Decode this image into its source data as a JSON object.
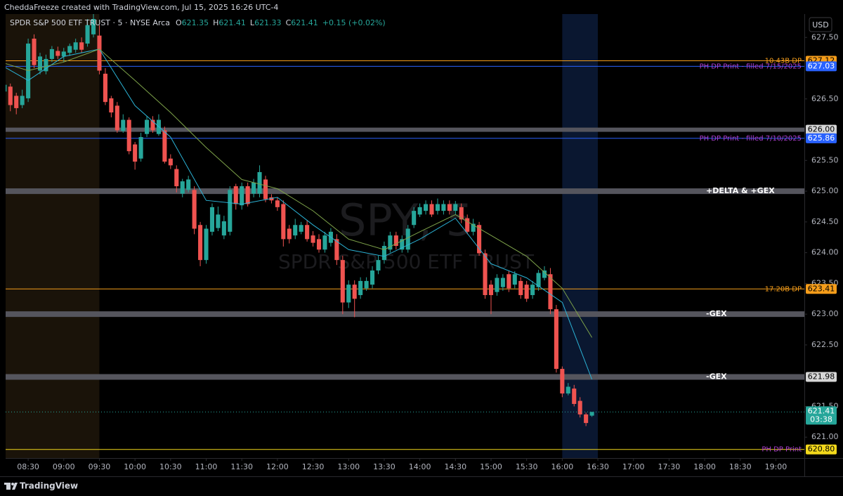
{
  "header": "CheddaFreeze created with TradingView.com, Jul 15, 2025 16:26 UTC-4",
  "footer": "TradingView",
  "chart_data": {
    "type": "candlestick",
    "title": "SPDR S&P 500 ETF TRUST · 5 · NYSE Arca",
    "watermark": [
      "SPY, 5",
      "SPDR S&P 500 ETF TRUST"
    ],
    "ohlc_prefixes": [
      "O",
      "H",
      "L",
      "C"
    ],
    "change": "+0.15 (+0.02%)",
    "currency": "USD",
    "countdown": "03:38",
    "up_color": "#26a69a",
    "down_color": "#ef5350",
    "x": [
      "08:10",
      "08:15",
      "08:20",
      "08:25",
      "08:30",
      "08:35",
      "08:40",
      "08:45",
      "08:50",
      "08:55",
      "09:00",
      "09:05",
      "09:10",
      "09:15",
      "09:20",
      "09:25",
      "09:30",
      "09:35",
      "09:40",
      "09:45",
      "09:50",
      "09:55",
      "10:00",
      "10:05",
      "10:10",
      "10:15",
      "10:20",
      "10:25",
      "10:30",
      "10:35",
      "10:40",
      "10:45",
      "10:50",
      "10:55",
      "11:00",
      "11:05",
      "11:10",
      "11:15",
      "11:20",
      "11:25",
      "11:30",
      "11:35",
      "11:40",
      "11:45",
      "11:50",
      "11:55",
      "12:00",
      "12:05",
      "12:10",
      "12:15",
      "12:20",
      "12:25",
      "12:30",
      "12:35",
      "12:40",
      "12:45",
      "12:50",
      "12:55",
      "13:00",
      "13:05",
      "13:10",
      "13:15",
      "13:20",
      "13:25",
      "13:30",
      "13:35",
      "13:40",
      "13:45",
      "13:50",
      "13:55",
      "14:00",
      "14:05",
      "14:10",
      "14:15",
      "14:20",
      "14:25",
      "14:30",
      "14:35",
      "14:40",
      "14:45",
      "14:50",
      "14:55",
      "15:00",
      "15:05",
      "15:10",
      "15:15",
      "15:20",
      "15:25",
      "15:30",
      "15:35",
      "15:40",
      "15:45",
      "15:50",
      "15:55",
      "16:00",
      "16:05",
      "16:10",
      "16:15",
      "16:20",
      "16:25"
    ],
    "ohlc": [
      [
        626.62,
        626.78,
        626.58,
        626.73
      ],
      [
        626.7,
        626.75,
        626.3,
        626.4
      ],
      [
        626.55,
        626.6,
        626.25,
        626.35
      ],
      [
        626.4,
        626.65,
        626.35,
        626.55
      ],
      [
        626.51,
        627.48,
        626.45,
        627.4
      ],
      [
        627.48,
        627.55,
        627.0,
        627.05
      ],
      [
        626.96,
        627.25,
        626.9,
        627.19
      ],
      [
        626.95,
        627.22,
        626.9,
        627.15
      ],
      [
        627.15,
        627.36,
        627.1,
        627.31
      ],
      [
        627.28,
        627.35,
        627.15,
        627.2
      ],
      [
        627.19,
        627.33,
        627.1,
        627.27
      ],
      [
        627.25,
        627.4,
        627.2,
        627.36
      ],
      [
        627.3,
        627.48,
        627.25,
        627.42
      ],
      [
        627.42,
        627.5,
        627.25,
        627.3
      ],
      [
        627.4,
        627.8,
        627.35,
        627.7
      ],
      [
        627.55,
        627.88,
        627.5,
        627.8
      ],
      [
        627.53,
        627.7,
        626.9,
        626.96
      ],
      [
        626.91,
        627.0,
        626.4,
        626.45
      ],
      [
        626.51,
        626.55,
        626.2,
        626.28
      ],
      [
        626.39,
        626.45,
        625.95,
        625.99
      ],
      [
        625.98,
        626.25,
        625.95,
        626.16
      ],
      [
        626.16,
        626.2,
        625.6,
        625.65
      ],
      [
        625.76,
        625.8,
        625.35,
        625.48
      ],
      [
        625.53,
        625.95,
        625.48,
        625.88
      ],
      [
        625.93,
        626.22,
        625.88,
        626.16
      ],
      [
        626.16,
        626.22,
        625.95,
        625.99
      ],
      [
        625.93,
        626.25,
        625.9,
        626.16
      ],
      [
        625.99,
        626.05,
        625.45,
        625.48
      ],
      [
        625.53,
        625.6,
        625.36,
        625.42
      ],
      [
        625.36,
        625.42,
        624.98,
        625.08
      ],
      [
        624.96,
        625.2,
        624.9,
        625.16
      ],
      [
        625.02,
        625.25,
        624.98,
        625.19
      ],
      [
        625.02,
        625.08,
        624.3,
        624.39
      ],
      [
        624.45,
        624.5,
        623.78,
        623.88
      ],
      [
        623.88,
        624.45,
        623.82,
        624.39
      ],
      [
        624.34,
        624.8,
        624.28,
        624.74
      ],
      [
        624.4,
        624.75,
        624.35,
        624.62
      ],
      [
        624.28,
        624.6,
        624.22,
        624.51
      ],
      [
        624.34,
        625.08,
        624.28,
        625.02
      ],
      [
        625.08,
        625.12,
        624.7,
        624.79
      ],
      [
        624.77,
        625.14,
        624.7,
        625.08
      ],
      [
        625.08,
        625.14,
        624.75,
        624.79
      ],
      [
        624.96,
        625.2,
        624.9,
        625.14
      ],
      [
        624.96,
        625.42,
        624.9,
        625.31
      ],
      [
        625.19,
        625.25,
        624.82,
        624.87
      ],
      [
        624.9,
        624.95,
        624.8,
        624.85
      ],
      [
        624.85,
        624.9,
        624.68,
        624.74
      ],
      [
        624.79,
        624.85,
        624.1,
        624.22
      ],
      [
        624.39,
        624.45,
        624.15,
        624.22
      ],
      [
        624.28,
        624.55,
        624.22,
        624.45
      ],
      [
        624.34,
        624.5,
        624.3,
        624.45
      ],
      [
        624.45,
        624.52,
        624.18,
        624.22
      ],
      [
        624.28,
        624.35,
        624.1,
        624.16
      ],
      [
        624.22,
        624.3,
        624.0,
        624.05
      ],
      [
        624.05,
        624.34,
        624.0,
        624.28
      ],
      [
        624.16,
        624.4,
        624.1,
        624.34
      ],
      [
        624.22,
        624.3,
        623.8,
        623.88
      ],
      [
        623.88,
        623.95,
        623.0,
        623.19
      ],
      [
        623.19,
        623.55,
        623.1,
        623.48
      ],
      [
        623.48,
        623.55,
        622.95,
        623.25
      ],
      [
        623.31,
        623.6,
        623.25,
        623.54
      ],
      [
        623.42,
        623.6,
        623.38,
        623.54
      ],
      [
        623.48,
        623.78,
        623.42,
        623.71
      ],
      [
        623.71,
        623.95,
        623.65,
        623.88
      ],
      [
        623.88,
        624.18,
        623.82,
        624.11
      ],
      [
        624.05,
        624.34,
        624.0,
        624.28
      ],
      [
        624.28,
        624.34,
        624.05,
        624.11
      ],
      [
        624.05,
        624.28,
        624.0,
        624.22
      ],
      [
        624.05,
        624.45,
        624.0,
        624.39
      ],
      [
        624.45,
        624.74,
        624.4,
        624.68
      ],
      [
        624.62,
        624.8,
        624.58,
        624.74
      ],
      [
        624.68,
        624.85,
        624.62,
        624.79
      ],
      [
        624.79,
        624.85,
        624.58,
        624.62
      ],
      [
        624.68,
        624.88,
        624.62,
        624.79
      ],
      [
        624.68,
        624.85,
        624.62,
        624.79
      ],
      [
        624.79,
        624.85,
        624.62,
        624.68
      ],
      [
        624.68,
        624.84,
        624.62,
        624.79
      ],
      [
        624.74,
        624.8,
        624.48,
        624.54
      ],
      [
        624.56,
        624.62,
        624.3,
        624.34
      ],
      [
        624.34,
        624.55,
        624.28,
        624.47
      ],
      [
        624.45,
        624.5,
        623.95,
        623.99
      ],
      [
        623.99,
        624.05,
        623.25,
        623.31
      ],
      [
        623.48,
        623.55,
        623.0,
        623.31
      ],
      [
        623.36,
        623.65,
        623.3,
        623.59
      ],
      [
        623.44,
        623.65,
        623.38,
        623.59
      ],
      [
        623.65,
        623.7,
        623.36,
        623.42
      ],
      [
        623.48,
        623.7,
        623.42,
        623.65
      ],
      [
        623.54,
        623.6,
        623.25,
        623.31
      ],
      [
        623.48,
        623.54,
        623.2,
        623.25
      ],
      [
        623.31,
        623.54,
        623.25,
        623.48
      ],
      [
        623.44,
        623.72,
        623.38,
        623.67
      ],
      [
        623.59,
        623.78,
        623.55,
        623.71
      ],
      [
        623.65,
        623.75,
        623.0,
        623.08
      ],
      [
        623.08,
        623.15,
        622.05,
        622.11
      ],
      [
        622.11,
        622.15,
        621.65,
        621.71
      ],
      [
        621.71,
        621.88,
        621.68,
        621.82
      ],
      [
        621.79,
        621.85,
        621.5,
        621.54
      ],
      [
        621.59,
        621.65,
        621.32,
        621.37
      ],
      [
        621.37,
        621.4,
        621.18,
        621.23
      ],
      [
        621.35,
        621.41,
        621.33,
        621.41
      ]
    ],
    "lines": [
      {
        "color": "#2bb3d6",
        "x": [
          "08:10",
          "08:30",
          "09:00",
          "09:30",
          "10:00",
          "10:30",
          "11:00",
          "11:30",
          "12:00",
          "12:30",
          "13:00",
          "13:30",
          "14:00",
          "14:30",
          "15:00",
          "15:30",
          "16:00",
          "16:25"
        ],
        "values": [
          627.02,
          626.8,
          627.19,
          627.31,
          626.39,
          625.88,
          624.85,
          624.79,
          624.9,
          624.45,
          624.05,
          623.94,
          624.22,
          624.56,
          623.82,
          623.59,
          623.19,
          621.94
        ]
      },
      {
        "color": "#7ea34a",
        "x": [
          "08:10",
          "08:30",
          "09:00",
          "09:30",
          "10:00",
          "10:30",
          "11:00",
          "11:30",
          "12:00",
          "12:30",
          "13:00",
          "13:30",
          "14:00",
          "14:30",
          "15:00",
          "15:30",
          "16:00",
          "16:25"
        ],
        "values": [
          627.08,
          626.96,
          627.1,
          627.31,
          626.8,
          626.28,
          625.71,
          625.19,
          625.04,
          624.68,
          624.22,
          624.05,
          624.34,
          624.62,
          624.28,
          623.94,
          623.42,
          622.62
        ]
      }
    ],
    "sessions": [
      {
        "to": "09:30",
        "color": "#1a1309"
      },
      {
        "from": "16:00",
        "to": "16:30",
        "color": "#0a1730"
      }
    ],
    "levels": [
      {
        "price": 627.12,
        "label": "10.43B DP",
        "color": "#f59d1a",
        "width": 1,
        "label_color": "#f59d1a",
        "label_align": "right",
        "badge": true,
        "badge_color": "#f59d1a",
        "badge_text_color": "#000000"
      },
      {
        "price": 627.03,
        "label": "PH DP Print - filled 7/15/2025",
        "color": "#2962ff",
        "width": 1,
        "label_color": "#b13fd6",
        "label_align": "right",
        "badge": true,
        "badge_color": "#2962ff",
        "badge_text_color": "#ffffff"
      },
      {
        "price": {
          "value": 626,
          "label": "626.00"
        },
        "color": "#55555d",
        "width": 6,
        "badge": true,
        "badge_color": "#d6d6d6",
        "badge_text_color": "#000000"
      },
      {
        "price": 625.86,
        "label": "PH DP Print - filled 7/10/2025",
        "color": "#2962ff",
        "width": 1,
        "label_color": "#b13fd6",
        "label_align": "right",
        "badge": true,
        "badge_color": "#2962ff",
        "badge_text_color": "#ffffff"
      },
      {
        "price": 625,
        "label": "+DELTA & +GEX",
        "color": "#55555d",
        "width": 8,
        "label_color": "#ffffff",
        "label_align": "left",
        "badge": false
      },
      {
        "price": 623.41,
        "label": "17.20B DP",
        "color": "#f59d1a",
        "width": 1,
        "label_color": "#f59d1a",
        "label_align": "right",
        "badge": true,
        "badge_color": "#f59d1a",
        "badge_text_color": "#000000"
      },
      {
        "price": 623,
        "label": "-GEX",
        "color": "#55555d",
        "width": 8,
        "label_color": "#ffffff",
        "label_align": "left",
        "badge": false
      },
      {
        "price": 621.98,
        "label": "-GEX",
        "color": "#55555d",
        "width": 8,
        "label_color": "#ffffff",
        "label_align": "left",
        "badge": true,
        "badge_color": "#d6d6d6",
        "badge_text_color": "#000000"
      },
      {
        "price": {
          "value": 620.8,
          "label": "620.80"
        },
        "label": "PH DP Print",
        "color": "#f2d81b",
        "width": 1,
        "label_color": "#b13fd6",
        "label_align": "right",
        "badge": true,
        "badge_color": "#f2d81b",
        "badge_text_color": "#000000"
      }
    ],
    "xlim": [
      "08:11",
      "19:24"
    ],
    "xticks": [
      "08:30",
      "09:00",
      "09:30",
      "10:00",
      "10:30",
      "11:00",
      "11:30",
      "12:00",
      "12:30",
      "13:00",
      "13:30",
      "14:00",
      "14:30",
      "15:00",
      "15:30",
      "16:00",
      "16:30",
      "17:00",
      "17:30",
      "18:00",
      "18:30",
      "19:00"
    ],
    "ylim": [
      620.66,
      627.88
    ],
    "yticks": [
      {
        "value": 627.5,
        "label": "627.50"
      },
      {
        "value": 626.5,
        "label": "626.50"
      },
      {
        "value": 625.5,
        "label": "625.50"
      },
      {
        "value": 625,
        "label": "625.00"
      },
      {
        "value": 624.5,
        "label": "624.50"
      },
      {
        "value": 624,
        "label": "624.00"
      },
      {
        "value": 623.5,
        "label": "623.50"
      },
      {
        "value": 623,
        "label": "623.00"
      },
      {
        "value": 622.5,
        "label": "622.50"
      },
      {
        "value": 621.5,
        "label": "621.50"
      },
      {
        "value": 621,
        "label": "621.00"
      }
    ],
    "grid": false
  }
}
